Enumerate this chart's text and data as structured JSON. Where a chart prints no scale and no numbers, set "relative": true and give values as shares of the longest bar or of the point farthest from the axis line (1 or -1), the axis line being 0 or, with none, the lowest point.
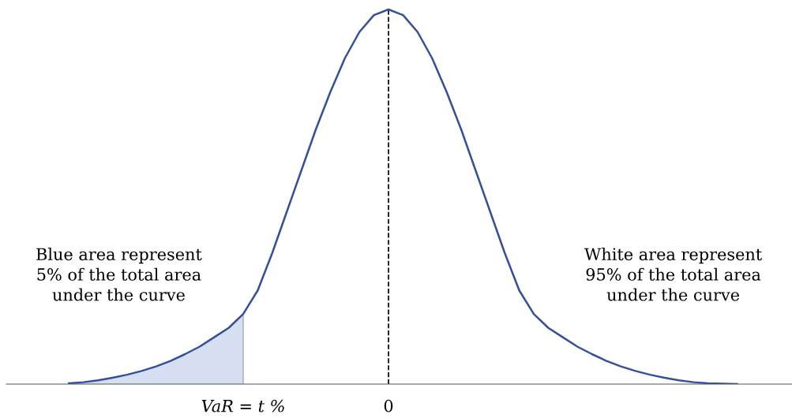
{
  "chart_data": {
    "type": "line",
    "relative": true,
    "legend": false,
    "line_style": "solid",
    "categories": [
      null,
      null,
      null,
      null,
      null,
      null,
      null,
      null,
      null,
      null,
      null,
      null,
      "VaR = t %",
      null,
      null,
      null,
      null,
      null,
      null,
      null,
      null,
      null,
      "0",
      null,
      null,
      null,
      null,
      null,
      null,
      null,
      null,
      null,
      null,
      null,
      null,
      null,
      null,
      null,
      null,
      null,
      null,
      null,
      null,
      null,
      null,
      null,
      null
    ],
    "series": [
      {
        "type": "area",
        "color": "#d6dff1",
        "values": [
          0.002,
          0.005,
          0.01,
          0.017,
          0.025,
          0.035,
          0.047,
          0.062,
          0.08,
          0.1,
          0.125,
          0.15,
          0.187,
          null,
          null,
          null,
          null,
          null,
          null,
          null,
          null,
          null,
          null,
          null,
          null,
          null,
          null,
          null,
          null,
          null,
          null,
          null,
          null,
          null,
          null,
          null,
          null,
          null,
          null,
          null,
          null,
          null,
          null,
          null,
          null,
          null,
          null
        ]
      },
      {
        "color": "#34509a",
        "values": [
          0.002,
          0.005,
          0.01,
          0.017,
          0.025,
          0.035,
          0.047,
          0.062,
          0.08,
          0.1,
          0.125,
          0.15,
          0.187,
          0.25,
          0.35,
          0.46,
          0.57,
          0.68,
          0.78,
          0.87,
          0.94,
          0.985,
          1.0,
          0.985,
          0.94,
          0.87,
          0.78,
          0.68,
          0.57,
          0.46,
          0.35,
          0.25,
          0.187,
          0.15,
          0.125,
          0.1,
          0.08,
          0.062,
          0.047,
          0.035,
          0.025,
          0.017,
          0.01,
          0.005,
          0.002,
          0.001,
          0.0
        ]
      }
    ],
    "ref_lines": [
      {
        "axis": "x",
        "value": "0",
        "color": "#000000",
        "line_style": "dashed"
      },
      {
        "axis": "x",
        "value": "VaR = t %",
        "color": "#b0b4bc",
        "line_style": "solid"
      }
    ],
    "annotations": [
      "Blue area represent\n5% of the total area\nunder the curve",
      "White area represent\n95% of the total area\nunder the curve"
    ]
  }
}
